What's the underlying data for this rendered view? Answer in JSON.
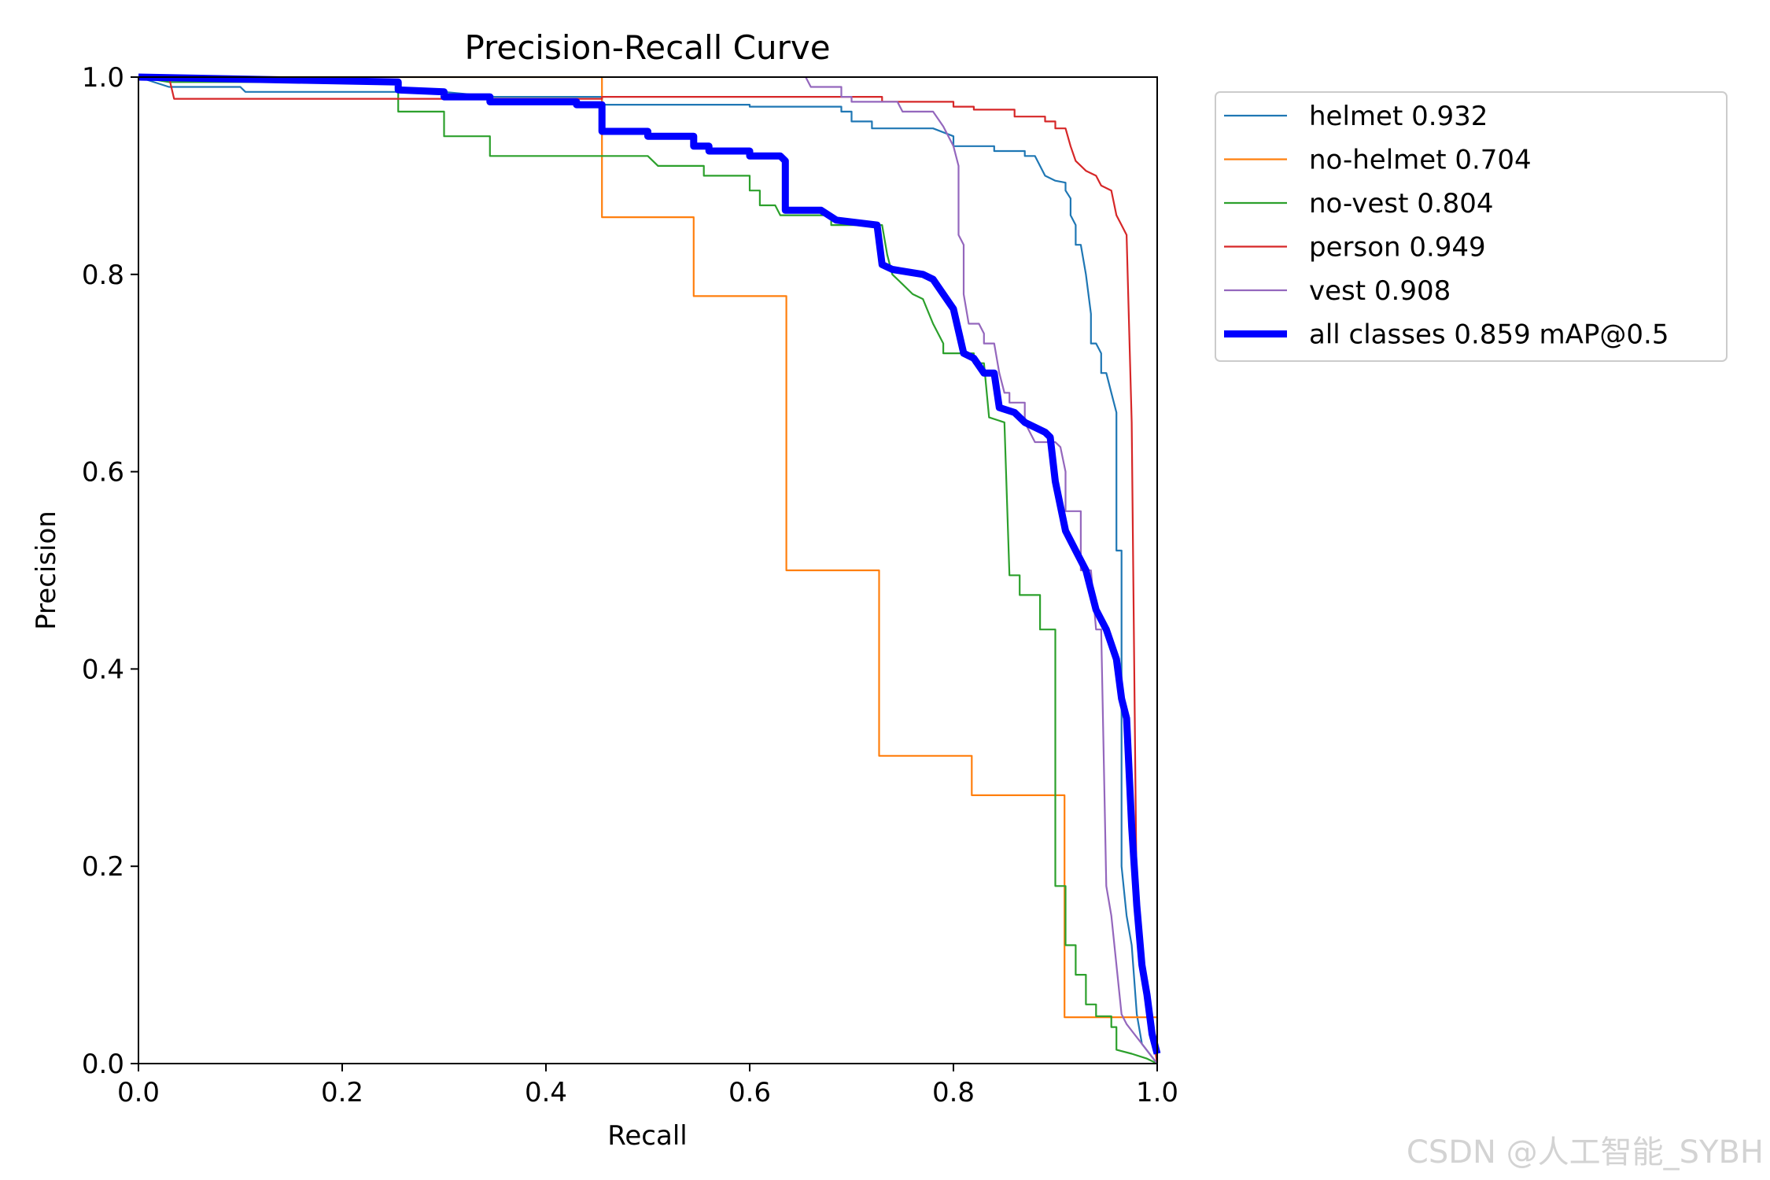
{
  "chart_data": {
    "type": "line",
    "title": "Precision-Recall Curve",
    "xlabel": "Recall",
    "ylabel": "Precision",
    "xlim": [
      0,
      1
    ],
    "ylim": [
      0,
      1
    ],
    "xticks": [
      "0.0",
      "0.2",
      "0.4",
      "0.6",
      "0.8",
      "1.0"
    ],
    "yticks": [
      "0.0",
      "0.2",
      "0.4",
      "0.6",
      "0.8",
      "1.0"
    ],
    "grid": false,
    "legend_position": "outside-top-right",
    "series": [
      {
        "name": "helmet",
        "legend_label": "helmet 0.932",
        "color": "#1f77b4",
        "points": [
          [
            0,
            1
          ],
          [
            0.03,
            0.99
          ],
          [
            0.1,
            0.99
          ],
          [
            0.105,
            0.985
          ],
          [
            0.3,
            0.985
          ],
          [
            0.35,
            0.98
          ],
          [
            0.455,
            0.98
          ],
          [
            0.455,
            0.972
          ],
          [
            0.6,
            0.972
          ],
          [
            0.6,
            0.97
          ],
          [
            0.69,
            0.97
          ],
          [
            0.69,
            0.965
          ],
          [
            0.7,
            0.965
          ],
          [
            0.7,
            0.955
          ],
          [
            0.72,
            0.955
          ],
          [
            0.72,
            0.948
          ],
          [
            0.78,
            0.948
          ],
          [
            0.8,
            0.94
          ],
          [
            0.8,
            0.93
          ],
          [
            0.84,
            0.93
          ],
          [
            0.84,
            0.925
          ],
          [
            0.87,
            0.925
          ],
          [
            0.87,
            0.92
          ],
          [
            0.88,
            0.92
          ],
          [
            0.885,
            0.91
          ],
          [
            0.89,
            0.9
          ],
          [
            0.9,
            0.895
          ],
          [
            0.91,
            0.893
          ],
          [
            0.91,
            0.885
          ],
          [
            0.915,
            0.877
          ],
          [
            0.915,
            0.86
          ],
          [
            0.92,
            0.85
          ],
          [
            0.92,
            0.83
          ],
          [
            0.925,
            0.83
          ],
          [
            0.93,
            0.8
          ],
          [
            0.935,
            0.76
          ],
          [
            0.935,
            0.73
          ],
          [
            0.94,
            0.73
          ],
          [
            0.945,
            0.72
          ],
          [
            0.945,
            0.7
          ],
          [
            0.95,
            0.7
          ],
          [
            0.955,
            0.68
          ],
          [
            0.96,
            0.66
          ],
          [
            0.96,
            0.52
          ],
          [
            0.965,
            0.52
          ],
          [
            0.965,
            0.2
          ],
          [
            0.97,
            0.15
          ],
          [
            0.975,
            0.12
          ],
          [
            0.98,
            0.05
          ],
          [
            0.985,
            0.02
          ],
          [
            1,
            0
          ]
        ]
      },
      {
        "name": "no-helmet",
        "legend_label": "no-helmet 0.704",
        "color": "#ff7f0e",
        "points": [
          [
            0,
            1
          ],
          [
            0.455,
            1
          ],
          [
            0.455,
            0.858
          ],
          [
            0.545,
            0.858
          ],
          [
            0.545,
            0.778
          ],
          [
            0.636,
            0.778
          ],
          [
            0.636,
            0.5
          ],
          [
            0.727,
            0.5
          ],
          [
            0.727,
            0.312
          ],
          [
            0.818,
            0.312
          ],
          [
            0.818,
            0.272
          ],
          [
            0.909,
            0.272
          ],
          [
            0.909,
            0.047
          ],
          [
            1,
            0.047
          ],
          [
            1,
            0
          ]
        ]
      },
      {
        "name": "no-vest",
        "legend_label": "no-vest 0.804",
        "color": "#2ca02c",
        "points": [
          [
            0,
            1
          ],
          [
            0.03,
            0.995
          ],
          [
            0.255,
            0.995
          ],
          [
            0.255,
            0.965
          ],
          [
            0.3,
            0.965
          ],
          [
            0.3,
            0.94
          ],
          [
            0.345,
            0.94
          ],
          [
            0.345,
            0.92
          ],
          [
            0.5,
            0.92
          ],
          [
            0.51,
            0.91
          ],
          [
            0.555,
            0.91
          ],
          [
            0.555,
            0.9
          ],
          [
            0.6,
            0.9
          ],
          [
            0.6,
            0.885
          ],
          [
            0.61,
            0.885
          ],
          [
            0.61,
            0.87
          ],
          [
            0.625,
            0.87
          ],
          [
            0.63,
            0.86
          ],
          [
            0.68,
            0.86
          ],
          [
            0.68,
            0.85
          ],
          [
            0.73,
            0.85
          ],
          [
            0.735,
            0.82
          ],
          [
            0.74,
            0.8
          ],
          [
            0.75,
            0.79
          ],
          [
            0.76,
            0.78
          ],
          [
            0.77,
            0.775
          ],
          [
            0.78,
            0.75
          ],
          [
            0.79,
            0.73
          ],
          [
            0.79,
            0.72
          ],
          [
            0.82,
            0.72
          ],
          [
            0.82,
            0.71
          ],
          [
            0.83,
            0.71
          ],
          [
            0.835,
            0.655
          ],
          [
            0.85,
            0.65
          ],
          [
            0.855,
            0.495
          ],
          [
            0.865,
            0.495
          ],
          [
            0.865,
            0.475
          ],
          [
            0.885,
            0.475
          ],
          [
            0.885,
            0.44
          ],
          [
            0.9,
            0.44
          ],
          [
            0.9,
            0.18
          ],
          [
            0.91,
            0.18
          ],
          [
            0.91,
            0.12
          ],
          [
            0.92,
            0.12
          ],
          [
            0.92,
            0.09
          ],
          [
            0.93,
            0.09
          ],
          [
            0.93,
            0.06
          ],
          [
            0.94,
            0.06
          ],
          [
            0.94,
            0.048
          ],
          [
            0.955,
            0.048
          ],
          [
            0.955,
            0.037
          ],
          [
            0.96,
            0.037
          ],
          [
            0.96,
            0.014
          ],
          [
            0.975,
            0.01
          ],
          [
            0.99,
            0.005
          ],
          [
            1,
            0
          ]
        ]
      },
      {
        "name": "person",
        "legend_label": "person 0.949",
        "color": "#d62728",
        "points": [
          [
            0,
            1
          ],
          [
            0.03,
            1
          ],
          [
            0.035,
            0.978
          ],
          [
            0.455,
            0.978
          ],
          [
            0.455,
            0.98
          ],
          [
            0.73,
            0.98
          ],
          [
            0.73,
            0.975
          ],
          [
            0.8,
            0.975
          ],
          [
            0.8,
            0.97
          ],
          [
            0.82,
            0.97
          ],
          [
            0.82,
            0.967
          ],
          [
            0.86,
            0.967
          ],
          [
            0.86,
            0.96
          ],
          [
            0.89,
            0.96
          ],
          [
            0.89,
            0.955
          ],
          [
            0.9,
            0.955
          ],
          [
            0.9,
            0.948
          ],
          [
            0.91,
            0.948
          ],
          [
            0.915,
            0.93
          ],
          [
            0.92,
            0.915
          ],
          [
            0.93,
            0.905
          ],
          [
            0.94,
            0.9
          ],
          [
            0.945,
            0.89
          ],
          [
            0.955,
            0.885
          ],
          [
            0.96,
            0.86
          ],
          [
            0.965,
            0.85
          ],
          [
            0.97,
            0.84
          ],
          [
            0.975,
            0.65
          ],
          [
            0.98,
            0.15
          ],
          [
            0.985,
            0.1
          ],
          [
            1,
            0
          ]
        ]
      },
      {
        "name": "vest",
        "legend_label": "vest 0.908",
        "color": "#9467bd",
        "points": [
          [
            0.655,
            1
          ],
          [
            0.66,
            0.99
          ],
          [
            0.69,
            0.99
          ],
          [
            0.69,
            0.98
          ],
          [
            0.7,
            0.98
          ],
          [
            0.7,
            0.975
          ],
          [
            0.745,
            0.975
          ],
          [
            0.75,
            0.965
          ],
          [
            0.78,
            0.965
          ],
          [
            0.79,
            0.95
          ],
          [
            0.8,
            0.93
          ],
          [
            0.805,
            0.91
          ],
          [
            0.805,
            0.84
          ],
          [
            0.81,
            0.83
          ],
          [
            0.81,
            0.78
          ],
          [
            0.815,
            0.75
          ],
          [
            0.825,
            0.75
          ],
          [
            0.83,
            0.74
          ],
          [
            0.83,
            0.73
          ],
          [
            0.84,
            0.73
          ],
          [
            0.845,
            0.7
          ],
          [
            0.85,
            0.68
          ],
          [
            0.855,
            0.68
          ],
          [
            0.855,
            0.67
          ],
          [
            0.87,
            0.67
          ],
          [
            0.87,
            0.65
          ],
          [
            0.875,
            0.64
          ],
          [
            0.88,
            0.63
          ],
          [
            0.9,
            0.63
          ],
          [
            0.905,
            0.625
          ],
          [
            0.91,
            0.6
          ],
          [
            0.91,
            0.56
          ],
          [
            0.925,
            0.56
          ],
          [
            0.925,
            0.5
          ],
          [
            0.935,
            0.5
          ],
          [
            0.94,
            0.44
          ],
          [
            0.945,
            0.44
          ],
          [
            0.95,
            0.18
          ],
          [
            0.955,
            0.15
          ],
          [
            0.96,
            0.1
          ],
          [
            0.965,
            0.05
          ],
          [
            0.97,
            0.04
          ],
          [
            1,
            0
          ]
        ]
      },
      {
        "name": "all classes",
        "legend_label": "all classes 0.859 mAP@0.5",
        "color": "#0000ff",
        "points": [
          [
            0,
            1
          ],
          [
            0.1,
            0.998
          ],
          [
            0.255,
            0.995
          ],
          [
            0.255,
            0.987
          ],
          [
            0.3,
            0.985
          ],
          [
            0.3,
            0.98
          ],
          [
            0.345,
            0.98
          ],
          [
            0.345,
            0.975
          ],
          [
            0.43,
            0.975
          ],
          [
            0.43,
            0.972
          ],
          [
            0.455,
            0.972
          ],
          [
            0.455,
            0.945
          ],
          [
            0.5,
            0.945
          ],
          [
            0.5,
            0.94
          ],
          [
            0.545,
            0.94
          ],
          [
            0.545,
            0.93
          ],
          [
            0.56,
            0.93
          ],
          [
            0.56,
            0.925
          ],
          [
            0.6,
            0.925
          ],
          [
            0.6,
            0.92
          ],
          [
            0.63,
            0.92
          ],
          [
            0.635,
            0.915
          ],
          [
            0.635,
            0.865
          ],
          [
            0.67,
            0.865
          ],
          [
            0.685,
            0.855
          ],
          [
            0.725,
            0.85
          ],
          [
            0.73,
            0.81
          ],
          [
            0.74,
            0.805
          ],
          [
            0.77,
            0.8
          ],
          [
            0.78,
            0.795
          ],
          [
            0.79,
            0.78
          ],
          [
            0.8,
            0.765
          ],
          [
            0.81,
            0.72
          ],
          [
            0.82,
            0.715
          ],
          [
            0.83,
            0.7
          ],
          [
            0.84,
            0.7
          ],
          [
            0.845,
            0.665
          ],
          [
            0.86,
            0.66
          ],
          [
            0.87,
            0.65
          ],
          [
            0.88,
            0.645
          ],
          [
            0.89,
            0.64
          ],
          [
            0.895,
            0.635
          ],
          [
            0.9,
            0.59
          ],
          [
            0.91,
            0.54
          ],
          [
            0.92,
            0.52
          ],
          [
            0.93,
            0.5
          ],
          [
            0.94,
            0.46
          ],
          [
            0.95,
            0.44
          ],
          [
            0.96,
            0.41
          ],
          [
            0.965,
            0.37
          ],
          [
            0.97,
            0.35
          ],
          [
            0.975,
            0.24
          ],
          [
            0.98,
            0.16
          ],
          [
            0.985,
            0.1
          ],
          [
            0.99,
            0.07
          ],
          [
            0.995,
            0.03
          ],
          [
            1,
            0.01
          ]
        ]
      }
    ]
  },
  "watermark": "CSDN @人工智能_SYBH"
}
